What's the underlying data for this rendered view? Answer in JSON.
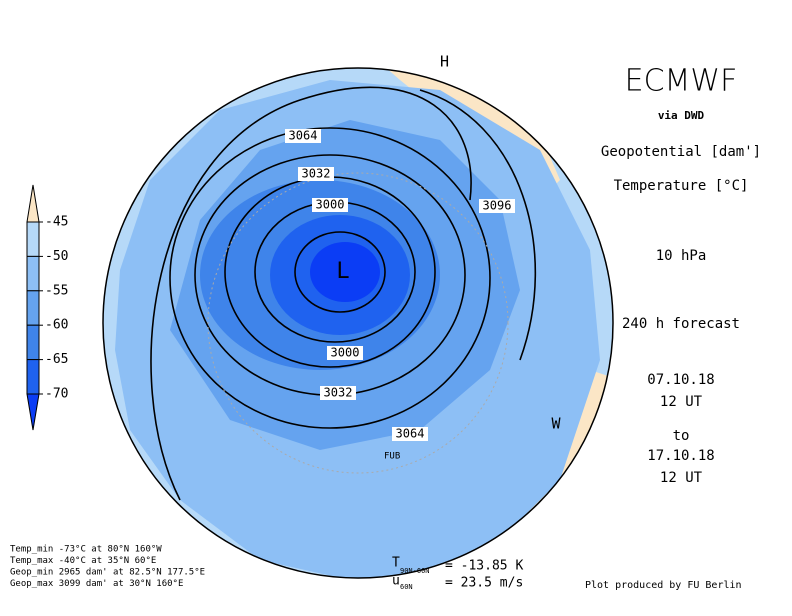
{
  "header": {
    "brand": "ECMWF",
    "source": "via DWD",
    "field1": "Geopotential [dam']",
    "field2": "Temperature [°C]",
    "level": "10 hPa",
    "forecast": "240 h forecast",
    "init_date": "07.10.18",
    "init_time": "12 UT",
    "to": "to",
    "valid_date": "17.10.18",
    "valid_time": "12 UT"
  },
  "colorbar": {
    "ticks": [
      -45,
      -50,
      -55,
      -60,
      -65,
      -70
    ],
    "colors": [
      "#fbe6c6",
      "#b6d9f8",
      "#8dbff5",
      "#65a3ef",
      "#3f84ea",
      "#1f62ef",
      "#0b3df5"
    ]
  },
  "contour_labels": [
    3064,
    3032,
    3000,
    3000,
    3032,
    3064,
    3096
  ],
  "map_labels": {
    "high": "H",
    "low": "L",
    "west": "W",
    "station": "FUB"
  },
  "stats": [
    "Temp_min -73°C at 80°N 160°W",
    "Temp_max -40°C at 35°N 60°E",
    "Geop_min 2965 dam' at 82.5°N 177.5°E",
    "Geop_max 3099 dam' at 30°N 160°E"
  ],
  "indices": {
    "t_symbol": "T",
    "t_sub": "90N-60N",
    "t_value": "= -13.85 K",
    "u_symbol": "u",
    "u_sub": "60N",
    "u_value": "= 23.5 m/s"
  },
  "credit": "Plot produced by FU Berlin"
}
